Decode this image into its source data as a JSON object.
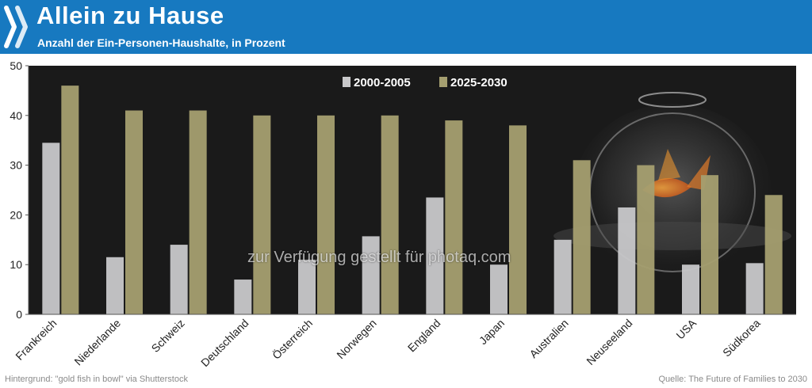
{
  "header": {
    "title": "Allein zu Hause",
    "subtitle": "Anzahl der Ein-Personen-Haushalte, in Prozent",
    "color": "#1779c0"
  },
  "footer": {
    "background_credit": "Hintergrund: \"gold fish in bowl\" via Shutterstock",
    "source": "Quelle: The Future of Families to 2030"
  },
  "watermark": "zur Verfügung gestellt für photaq.com",
  "background_icon": "goldfish-bowl-icon",
  "chart_data": {
    "type": "bar",
    "categories": [
      "Frankreich",
      "Niederlande",
      "Schweiz",
      "Deutschland",
      "Österreich",
      "Norwegen",
      "England",
      "Japan",
      "Australien",
      "Neuseeland",
      "USA",
      "Südkorea"
    ],
    "series": [
      {
        "name": "2000-2005",
        "color": "#c8c8ca",
        "values": [
          34.5,
          11.5,
          14,
          7,
          11,
          15.7,
          23.5,
          10,
          15,
          21.5,
          10,
          10.3
        ]
      },
      {
        "name": "2025-2030",
        "color": "#a59f70",
        "values": [
          46,
          41,
          41,
          40,
          40,
          40,
          39,
          38,
          31,
          30,
          28,
          24
        ]
      }
    ],
    "ylim": [
      0,
      50
    ],
    "yticks": [
      "0",
      "10",
      "20",
      "30",
      "40",
      "50"
    ],
    "grid": false,
    "legend": "top-center",
    "background": "#1a1a1a"
  }
}
